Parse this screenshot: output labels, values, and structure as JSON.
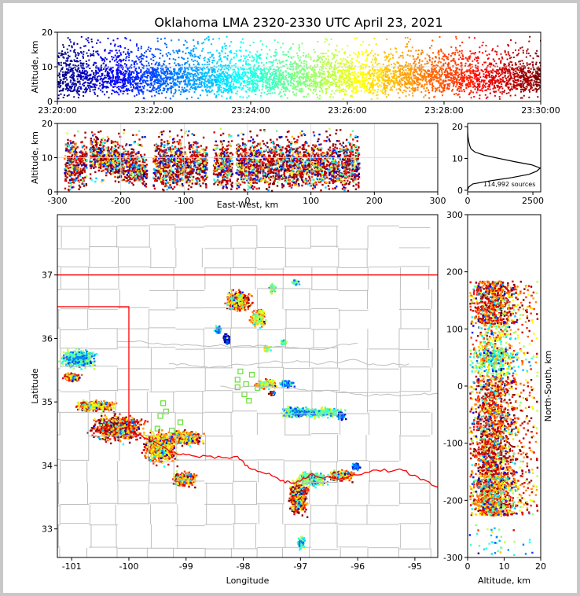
{
  "title": "Oklahoma LMA 2320-2330 UTC April 23, 2021",
  "chart_data": [
    {
      "id": "time-altitude",
      "type": "scatter",
      "ylabel": "Altitude, km",
      "ylim": [
        0,
        20
      ],
      "yticks": [
        "0",
        "10",
        "20"
      ],
      "xticks": [
        "23:20:00",
        "23:22:00",
        "23:24:00",
        "23:26:00",
        "23:28:00",
        "23:30:00"
      ],
      "xlim_seconds": [
        0,
        600
      ],
      "color_by": "time",
      "altitude_band_km": [
        1,
        19
      ],
      "densest_altitude_km": 7
    },
    {
      "id": "east-west-altitude",
      "type": "scatter",
      "xlabel": "East-West, km",
      "ylabel": "Altitude, km",
      "xlim": [
        -300,
        300
      ],
      "ylim": [
        0,
        20
      ],
      "xticks": [
        "-300",
        "-200",
        "-100",
        "0",
        "100",
        "200",
        "300"
      ],
      "yticks": [
        "0",
        "10",
        "20"
      ],
      "clusters_km": [
        [
          -290,
          -255
        ],
        [
          -250,
          -160
        ],
        [
          -150,
          -65
        ],
        [
          -55,
          -25
        ],
        [
          -20,
          55
        ],
        [
          55,
          100
        ],
        [
          100,
          175
        ]
      ]
    },
    {
      "id": "altitude-histogram",
      "type": "line",
      "xlim": [
        0,
        2800
      ],
      "ylim": [
        0,
        20
      ],
      "xticks": [
        "0",
        "2500"
      ],
      "yticks": [
        "0",
        "10",
        "20"
      ],
      "annotation": "114,992 sources",
      "profile": [
        {
          "alt": 0,
          "count": 0
        },
        {
          "alt": 1,
          "count": 40
        },
        {
          "alt": 2,
          "count": 200
        },
        {
          "alt": 3,
          "count": 900
        },
        {
          "alt": 4,
          "count": 1700
        },
        {
          "alt": 5,
          "count": 2350
        },
        {
          "alt": 6,
          "count": 2650
        },
        {
          "alt": 7,
          "count": 2780
        },
        {
          "alt": 8,
          "count": 2450
        },
        {
          "alt": 9,
          "count": 1800
        },
        {
          "alt": 10,
          "count": 1200
        },
        {
          "alt": 11,
          "count": 650
        },
        {
          "alt": 12,
          "count": 280
        },
        {
          "alt": 13,
          "count": 130
        },
        {
          "alt": 14,
          "count": 80
        },
        {
          "alt": 15,
          "count": 50
        },
        {
          "alt": 16,
          "count": 30
        },
        {
          "alt": 17,
          "count": 15
        },
        {
          "alt": 18,
          "count": 5
        },
        {
          "alt": 19,
          "count": 2
        },
        {
          "alt": 20,
          "count": 0
        }
      ]
    },
    {
      "id": "plan-view-map",
      "type": "scatter",
      "xlabel": "Longitude",
      "ylabel": "Latitude",
      "xlim": [
        -101.25,
        -94.6
      ],
      "ylim": [
        32.55,
        37.95
      ],
      "xticks": [
        "-101",
        "-100",
        "-99",
        "-98",
        "-97",
        "-96",
        "-95"
      ],
      "yticks": [
        "33",
        "34",
        "35",
        "36",
        "37"
      ],
      "storms": [
        {
          "lon": -98.1,
          "lat": 36.6,
          "sx": 0.16,
          "sy": 0.12,
          "phase": 0.85
        },
        {
          "lon": -97.75,
          "lat": 36.35,
          "sx": 0.1,
          "sy": 0.1,
          "phase": 0.7
        },
        {
          "lon": -97.5,
          "lat": 36.8,
          "sx": 0.05,
          "sy": 0.05,
          "phase": 0.5
        },
        {
          "lon": -97.1,
          "lat": 36.9,
          "sx": 0.05,
          "sy": 0.03,
          "phase": 0.4
        },
        {
          "lon": -98.45,
          "lat": 36.15,
          "sx": 0.05,
          "sy": 0.05,
          "phase": 0.3
        },
        {
          "lon": -98.3,
          "lat": 36.0,
          "sx": 0.05,
          "sy": 0.06,
          "phase": 0.02
        },
        {
          "lon": -97.6,
          "lat": 35.85,
          "sx": 0.05,
          "sy": 0.04,
          "phase": 0.6
        },
        {
          "lon": -97.3,
          "lat": 35.95,
          "sx": 0.04,
          "sy": 0.03,
          "phase": 0.5
        },
        {
          "lon": -100.9,
          "lat": 35.7,
          "sx": 0.22,
          "sy": 0.1,
          "phase": 0.4
        },
        {
          "lon": -101.0,
          "lat": 35.4,
          "sx": 0.12,
          "sy": 0.05,
          "phase": 0.85
        },
        {
          "lon": -100.6,
          "lat": 34.95,
          "sx": 0.25,
          "sy": 0.06,
          "phase": 0.8
        },
        {
          "lon": -100.2,
          "lat": 34.6,
          "sx": 0.35,
          "sy": 0.15,
          "phase": 0.9
        },
        {
          "lon": -99.45,
          "lat": 34.3,
          "sx": 0.22,
          "sy": 0.18,
          "phase": 0.8
        },
        {
          "lon": -99.0,
          "lat": 34.45,
          "sx": 0.22,
          "sy": 0.08,
          "phase": 0.85
        },
        {
          "lon": -99.05,
          "lat": 33.8,
          "sx": 0.15,
          "sy": 0.08,
          "phase": 0.85
        },
        {
          "lon": -97.6,
          "lat": 35.3,
          "sx": 0.14,
          "sy": 0.05,
          "phase": 0.7
        },
        {
          "lon": -97.25,
          "lat": 35.3,
          "sx": 0.1,
          "sy": 0.04,
          "phase": 0.3
        },
        {
          "lon": -97.5,
          "lat": 35.15,
          "sx": 0.05,
          "sy": 0.03,
          "phase": 0.95
        },
        {
          "lon": -97.05,
          "lat": 34.85,
          "sx": 0.22,
          "sy": 0.06,
          "phase": 0.4
        },
        {
          "lon": -96.6,
          "lat": 34.85,
          "sx": 0.25,
          "sy": 0.05,
          "phase": 0.5
        },
        {
          "lon": -96.3,
          "lat": 34.8,
          "sx": 0.06,
          "sy": 0.05,
          "phase": 0.2
        },
        {
          "lon": -97.05,
          "lat": 33.5,
          "sx": 0.12,
          "sy": 0.18,
          "phase": 0.9
        },
        {
          "lon": -96.8,
          "lat": 33.8,
          "sx": 0.2,
          "sy": 0.08,
          "phase": 0.5
        },
        {
          "lon": -96.3,
          "lat": 33.85,
          "sx": 0.15,
          "sy": 0.06,
          "phase": 0.85
        },
        {
          "lon": -96.05,
          "lat": 34.0,
          "sx": 0.06,
          "sy": 0.04,
          "phase": 0.2
        },
        {
          "lon": -97.0,
          "lat": 32.8,
          "sx": 0.05,
          "sy": 0.08,
          "phase": 0.4
        }
      ],
      "stations": [
        [
          -98.05,
          35.48
        ],
        [
          -97.85,
          35.43
        ],
        [
          -98.1,
          35.35
        ],
        [
          -97.95,
          35.28
        ],
        [
          -98.1,
          35.23
        ],
        [
          -97.75,
          35.22
        ],
        [
          -97.98,
          35.12
        ],
        [
          -97.9,
          35.02
        ],
        [
          -99.4,
          34.98
        ],
        [
          -99.35,
          34.85
        ],
        [
          -99.45,
          34.78
        ],
        [
          -99.1,
          34.68
        ],
        [
          -99.5,
          34.58
        ],
        [
          -99.25,
          34.55
        ]
      ],
      "colors": {
        "oklahoma_border": "#ff0000",
        "county_lines": "#bfbfbf",
        "stations": "#66e033"
      }
    },
    {
      "id": "altitude-north-south",
      "type": "scatter",
      "xlabel": "Altitude, km",
      "ylabel": "North-South, km",
      "xlim": [
        0,
        20
      ],
      "ylim": [
        -300,
        300
      ],
      "xticks": [
        "0",
        "10",
        "20"
      ],
      "yticks": [
        "-300",
        "-200",
        "-100",
        "0",
        "100",
        "200",
        "300"
      ]
    }
  ]
}
